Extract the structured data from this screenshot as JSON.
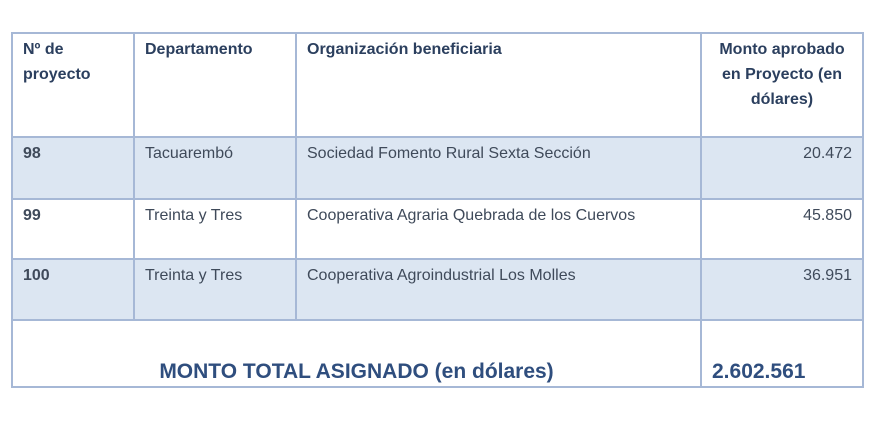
{
  "headers": {
    "project_number": "Nº de proyecto",
    "department": "Departamento",
    "organization": "Organización beneficiaria",
    "amount": "Monto aprobado en Proyecto (en dólares)"
  },
  "rows": [
    {
      "number": "98",
      "department": "Tacuarembó",
      "organization": "Sociedad Fomento Rural Sexta Sección",
      "amount": "20.472"
    },
    {
      "number": "99",
      "department": "Treinta y Tres",
      "organization": "Cooperativa Agraria Quebrada de los Cuervos",
      "amount": "45.850"
    },
    {
      "number": "100",
      "department": "Treinta y Tres",
      "organization": "Cooperativa Agroindustrial Los Molles",
      "amount": "36.951"
    }
  ],
  "total": {
    "label": "MONTO TOTAL ASIGNADO (en dólares)",
    "amount": "2.602.561"
  },
  "colors": {
    "border": "#a6b8d6",
    "row_shade": "#dce6f2",
    "header_text": "#2b3f5e",
    "total_text": "#2f4e7e"
  }
}
